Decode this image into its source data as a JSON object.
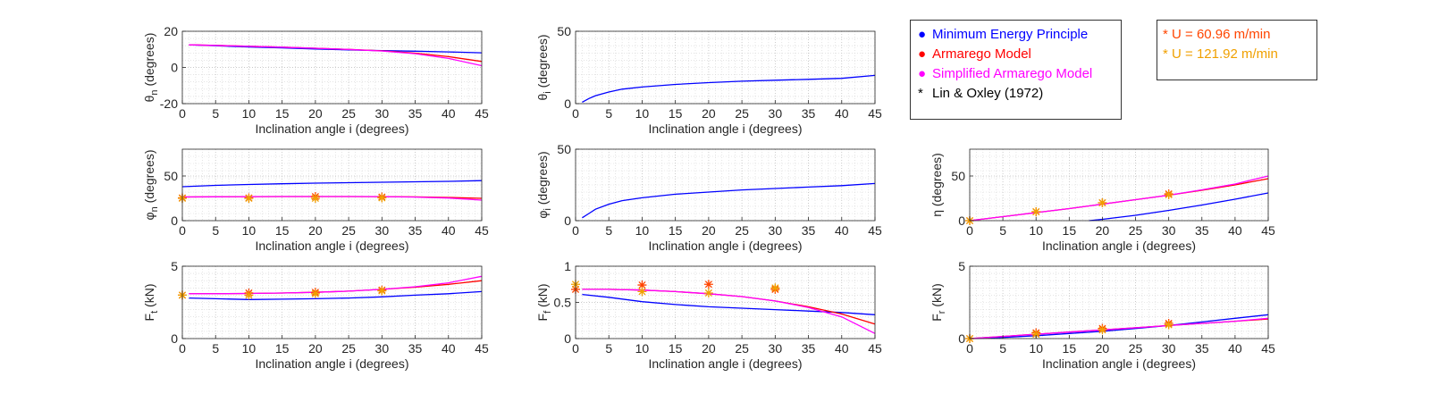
{
  "chart_data": [
    {
      "id": "theta_n",
      "type": "line",
      "ylabel": "θ_n (degrees)",
      "xlabel": "Inclination angle i (degrees)",
      "xlim": [
        0,
        45
      ],
      "ylim": [
        -20,
        20
      ],
      "xticks": [
        0,
        5,
        10,
        15,
        20,
        25,
        30,
        35,
        40,
        45
      ],
      "yticks": [
        -20,
        0,
        20
      ],
      "grid": true,
      "series": [
        {
          "name": "Minimum Energy Principle",
          "color": "#0000ff",
          "x": [
            1,
            5,
            10,
            15,
            20,
            25,
            30,
            35,
            40,
            45
          ],
          "y": [
            12.5,
            12.0,
            11.3,
            10.8,
            10.2,
            9.7,
            9.3,
            9.0,
            8.6,
            8.1
          ]
        },
        {
          "name": "Armarego Model",
          "color": "#ff0000",
          "x": [
            1,
            5,
            10,
            15,
            20,
            25,
            30,
            35,
            40,
            45
          ],
          "y": [
            12.5,
            12.2,
            11.7,
            11.2,
            10.6,
            10.0,
            9.2,
            7.9,
            6.0,
            3.3
          ]
        },
        {
          "name": "Simplified Armarego Model",
          "color": "#ff00ff",
          "x": [
            1,
            5,
            10,
            15,
            20,
            25,
            30,
            35,
            40,
            45
          ],
          "y": [
            12.5,
            12.2,
            11.7,
            11.2,
            10.6,
            10.0,
            9.1,
            7.6,
            5.0,
            1.0
          ]
        }
      ],
      "markers": []
    },
    {
      "id": "theta_i",
      "type": "line",
      "ylabel": "θ_i (degrees)",
      "xlabel": "Inclination angle i (degrees)",
      "xlim": [
        0,
        45
      ],
      "ylim": [
        0,
        50
      ],
      "xticks": [
        0,
        5,
        10,
        15,
        20,
        25,
        30,
        35,
        40,
        45
      ],
      "yticks": [
        0,
        50
      ],
      "grid": true,
      "series": [
        {
          "name": "Minimum Energy Principle",
          "color": "#0000ff",
          "x": [
            1,
            2,
            3,
            5,
            7,
            10,
            15,
            20,
            25,
            30,
            35,
            40,
            45
          ],
          "y": [
            1,
            3.5,
            5.5,
            8,
            10,
            11.5,
            13.3,
            14.5,
            15.5,
            16.2,
            16.8,
            17.5,
            19.5
          ]
        }
      ],
      "markers": []
    },
    {
      "id": "phi_n",
      "type": "line",
      "ylabel": "φ_n (degrees)",
      "xlabel": "Inclination angle i (degrees)",
      "xlim": [
        0,
        45
      ],
      "ylim": [
        0,
        80
      ],
      "xticks": [
        0,
        5,
        10,
        15,
        20,
        25,
        30,
        35,
        40,
        45
      ],
      "yticks": [
        0,
        50
      ],
      "grid": true,
      "series": [
        {
          "name": "Minimum Energy Principle",
          "color": "#0000ff",
          "x": [
            0,
            5,
            10,
            15,
            20,
            25,
            30,
            35,
            40,
            45
          ],
          "y": [
            38,
            39.5,
            40.5,
            41.3,
            42,
            42.5,
            43,
            43.5,
            44,
            44.8
          ]
        },
        {
          "name": "Armarego Model",
          "color": "#ff0000",
          "x": [
            0,
            5,
            10,
            15,
            20,
            25,
            30,
            35,
            40,
            45
          ],
          "y": [
            26.5,
            26.7,
            26.9,
            27,
            27,
            27,
            26.9,
            26.6,
            26,
            25
          ]
        },
        {
          "name": "Simplified Armarego Model",
          "color": "#ff00ff",
          "x": [
            0,
            5,
            10,
            15,
            20,
            25,
            30,
            35,
            40,
            45
          ],
          "y": [
            26.5,
            26.7,
            26.9,
            27,
            27,
            27,
            26.9,
            26.4,
            25.3,
            23
          ]
        }
      ],
      "markers": [
        {
          "label": "U = 60.96 m/min",
          "color": "#ff4500",
          "x": [
            0,
            10,
            20,
            30
          ],
          "y": [
            25.5,
            25.5,
            27,
            26.5
          ]
        },
        {
          "label": "U = 121.92 m/min",
          "color": "#f0a000",
          "x": [
            0,
            10,
            20,
            30
          ],
          "y": [
            25,
            25,
            25,
            25.5
          ]
        }
      ]
    },
    {
      "id": "phi_i",
      "type": "line",
      "ylabel": "φ_i (degrees)",
      "xlabel": "Inclination angle i (degrees)",
      "xlim": [
        0,
        45
      ],
      "ylim": [
        0,
        50
      ],
      "xticks": [
        0,
        5,
        10,
        15,
        20,
        25,
        30,
        35,
        40,
        45
      ],
      "yticks": [
        0,
        50
      ],
      "grid": true,
      "series": [
        {
          "name": "Minimum Energy Principle",
          "color": "#0000ff",
          "x": [
            1,
            2,
            3,
            5,
            7,
            10,
            15,
            20,
            25,
            30,
            35,
            40,
            45
          ],
          "y": [
            2,
            5,
            8,
            11.5,
            14,
            16,
            18.5,
            20,
            21.5,
            22.5,
            23.5,
            24.5,
            26
          ]
        }
      ],
      "markers": []
    },
    {
      "id": "eta",
      "type": "line",
      "ylabel": "η (degrees)",
      "xlabel": "Inclination angle i (degrees)",
      "xlim": [
        0,
        45
      ],
      "ylim": [
        0,
        80
      ],
      "xticks": [
        0,
        5,
        10,
        15,
        20,
        25,
        30,
        35,
        40,
        45
      ],
      "yticks": [
        0,
        50
      ],
      "grid": true,
      "series": [
        {
          "name": "Minimum Energy Principle",
          "color": "#0000ff",
          "x": [
            18,
            20,
            25,
            30,
            35,
            40,
            45
          ],
          "y": [
            0,
            1.5,
            6,
            11.5,
            17.5,
            24,
            31
          ]
        },
        {
          "name": "Armarego Model",
          "color": "#ff0000",
          "x": [
            0,
            5,
            10,
            15,
            20,
            25,
            30,
            35,
            40,
            45
          ],
          "y": [
            0,
            4.5,
            9,
            13.5,
            18.5,
            23.5,
            28.5,
            34,
            40,
            47
          ]
        },
        {
          "name": "Simplified Armarego Model",
          "color": "#ff00ff",
          "x": [
            0,
            5,
            10,
            15,
            20,
            25,
            30,
            35,
            40,
            45
          ],
          "y": [
            0,
            4.5,
            9,
            13.5,
            18.5,
            23.5,
            28.5,
            34.5,
            41,
            50
          ]
        }
      ],
      "markers": [
        {
          "label": "U = 60.96 m/min",
          "color": "#ff4500",
          "x": [
            0,
            10,
            20,
            30
          ],
          "y": [
            0,
            10,
            20,
            30
          ]
        },
        {
          "label": "U = 121.92 m/min",
          "color": "#f0a000",
          "x": [
            0,
            10,
            20,
            30
          ],
          "y": [
            0,
            10,
            20,
            29
          ]
        }
      ]
    },
    {
      "id": "Ft",
      "type": "line",
      "ylabel": "F_t (kN)",
      "xlabel": "Inclination angle i (degrees)",
      "xlim": [
        0,
        45
      ],
      "ylim": [
        0,
        5
      ],
      "xticks": [
        0,
        5,
        10,
        15,
        20,
        25,
        30,
        35,
        40,
        45
      ],
      "yticks": [
        0,
        5
      ],
      "grid": true,
      "series": [
        {
          "name": "Minimum Energy Principle",
          "color": "#0000ff",
          "x": [
            1,
            5,
            10,
            15,
            20,
            25,
            30,
            35,
            40,
            45
          ],
          "y": [
            2.8,
            2.75,
            2.7,
            2.72,
            2.75,
            2.8,
            2.88,
            3.0,
            3.1,
            3.25
          ]
        },
        {
          "name": "Armarego Model",
          "color": "#ff0000",
          "x": [
            1,
            5,
            10,
            15,
            20,
            25,
            30,
            35,
            40,
            45
          ],
          "y": [
            3.1,
            3.1,
            3.12,
            3.15,
            3.2,
            3.28,
            3.4,
            3.55,
            3.75,
            4.0
          ]
        },
        {
          "name": "Simplified Armarego Model",
          "color": "#ff00ff",
          "x": [
            1,
            5,
            10,
            15,
            20,
            25,
            30,
            35,
            40,
            45
          ],
          "y": [
            3.1,
            3.1,
            3.12,
            3.15,
            3.2,
            3.28,
            3.4,
            3.58,
            3.85,
            4.3
          ]
        }
      ],
      "markers": [
        {
          "label": "U = 60.96 m/min",
          "color": "#ff4500",
          "x": [
            0,
            10,
            20,
            30
          ],
          "y": [
            3.0,
            3.15,
            3.2,
            3.35
          ]
        },
        {
          "label": "U = 121.92 m/min",
          "color": "#f0a000",
          "x": [
            0,
            10,
            20,
            30
          ],
          "y": [
            3.0,
            3.0,
            3.1,
            3.3
          ]
        }
      ]
    },
    {
      "id": "Ff",
      "type": "line",
      "ylabel": "F_f (kN)",
      "xlabel": "Inclination angle i (degrees)",
      "xlim": [
        0,
        45
      ],
      "ylim": [
        0,
        1
      ],
      "xticks": [
        0,
        5,
        10,
        15,
        20,
        25,
        30,
        35,
        40,
        45
      ],
      "yticks": [
        0,
        0.5,
        1
      ],
      "grid": true,
      "series": [
        {
          "name": "Minimum Energy Principle",
          "color": "#0000ff",
          "x": [
            1,
            5,
            10,
            15,
            20,
            25,
            30,
            35,
            40,
            45
          ],
          "y": [
            0.61,
            0.57,
            0.51,
            0.47,
            0.44,
            0.42,
            0.4,
            0.38,
            0.36,
            0.33
          ]
        },
        {
          "name": "Armarego Model",
          "color": "#ff0000",
          "x": [
            1,
            5,
            10,
            15,
            20,
            25,
            30,
            35,
            40,
            45
          ],
          "y": [
            0.68,
            0.68,
            0.67,
            0.65,
            0.62,
            0.58,
            0.52,
            0.44,
            0.34,
            0.2
          ]
        },
        {
          "name": "Simplified Armarego Model",
          "color": "#ff00ff",
          "x": [
            1,
            5,
            10,
            15,
            20,
            25,
            30,
            35,
            40,
            45
          ],
          "y": [
            0.68,
            0.68,
            0.67,
            0.65,
            0.62,
            0.58,
            0.52,
            0.43,
            0.3,
            0.07
          ]
        }
      ],
      "markers": [
        {
          "label": "U = 60.96 m/min",
          "color": "#ff4500",
          "x": [
            0,
            10,
            20,
            30
          ],
          "y": [
            0.68,
            0.74,
            0.75,
            0.68
          ]
        },
        {
          "label": "U = 121.92 m/min",
          "color": "#f0a000",
          "x": [
            0,
            10,
            20,
            30
          ],
          "y": [
            0.75,
            0.65,
            0.63,
            0.7
          ]
        }
      ]
    },
    {
      "id": "Fr",
      "type": "line",
      "ylabel": "F_r (kN)",
      "xlabel": "Inclination angle i (degrees)",
      "xlim": [
        0,
        45
      ],
      "ylim": [
        0,
        5
      ],
      "xticks": [
        0,
        5,
        10,
        15,
        20,
        25,
        30,
        35,
        40,
        45
      ],
      "yticks": [
        0,
        5
      ],
      "grid": true,
      "series": [
        {
          "name": "Minimum Energy Principle",
          "color": "#0000ff",
          "x": [
            0,
            5,
            10,
            15,
            20,
            25,
            30,
            35,
            40,
            45
          ],
          "y": [
            0,
            0.08,
            0.2,
            0.35,
            0.5,
            0.7,
            0.9,
            1.15,
            1.4,
            1.65
          ]
        },
        {
          "name": "Armarego Model",
          "color": "#ff0000",
          "x": [
            0,
            5,
            10,
            15,
            20,
            25,
            30,
            35,
            40,
            45
          ],
          "y": [
            0,
            0.15,
            0.3,
            0.45,
            0.6,
            0.75,
            0.9,
            1.05,
            1.2,
            1.35
          ]
        },
        {
          "name": "Simplified Armarego Model",
          "color": "#ff00ff",
          "x": [
            0,
            5,
            10,
            15,
            20,
            25,
            30,
            35,
            40,
            45
          ],
          "y": [
            0,
            0.15,
            0.3,
            0.45,
            0.6,
            0.75,
            0.9,
            1.05,
            1.2,
            1.4
          ]
        }
      ],
      "markers": [
        {
          "label": "U = 60.96 m/min",
          "color": "#ff4500",
          "x": [
            0,
            10,
            20,
            30
          ],
          "y": [
            0,
            0.4,
            0.7,
            1.05
          ]
        },
        {
          "label": "U = 121.92 m/min",
          "color": "#f0a000",
          "x": [
            0,
            10,
            20,
            30
          ],
          "y": [
            0,
            0.3,
            0.6,
            0.95
          ]
        }
      ]
    }
  ],
  "legend_models": {
    "items": [
      {
        "label": "Minimum Energy Principle",
        "color": "#0000ff",
        "marker": "●"
      },
      {
        "label": "Armarego Model",
        "color": "#ff0000",
        "marker": "●"
      },
      {
        "label": "Simplified Armarego Model",
        "color": "#ff00ff",
        "marker": "●"
      },
      {
        "label": "Lin & Oxley (1972)",
        "color": "#000000",
        "marker": "*"
      }
    ]
  },
  "legend_speeds": {
    "items": [
      {
        "label": "U = 60.96 m/min",
        "color": "#ff4500",
        "marker": "*"
      },
      {
        "label": "U = 121.92 m/min",
        "color": "#f0a000",
        "marker": "*"
      }
    ]
  }
}
